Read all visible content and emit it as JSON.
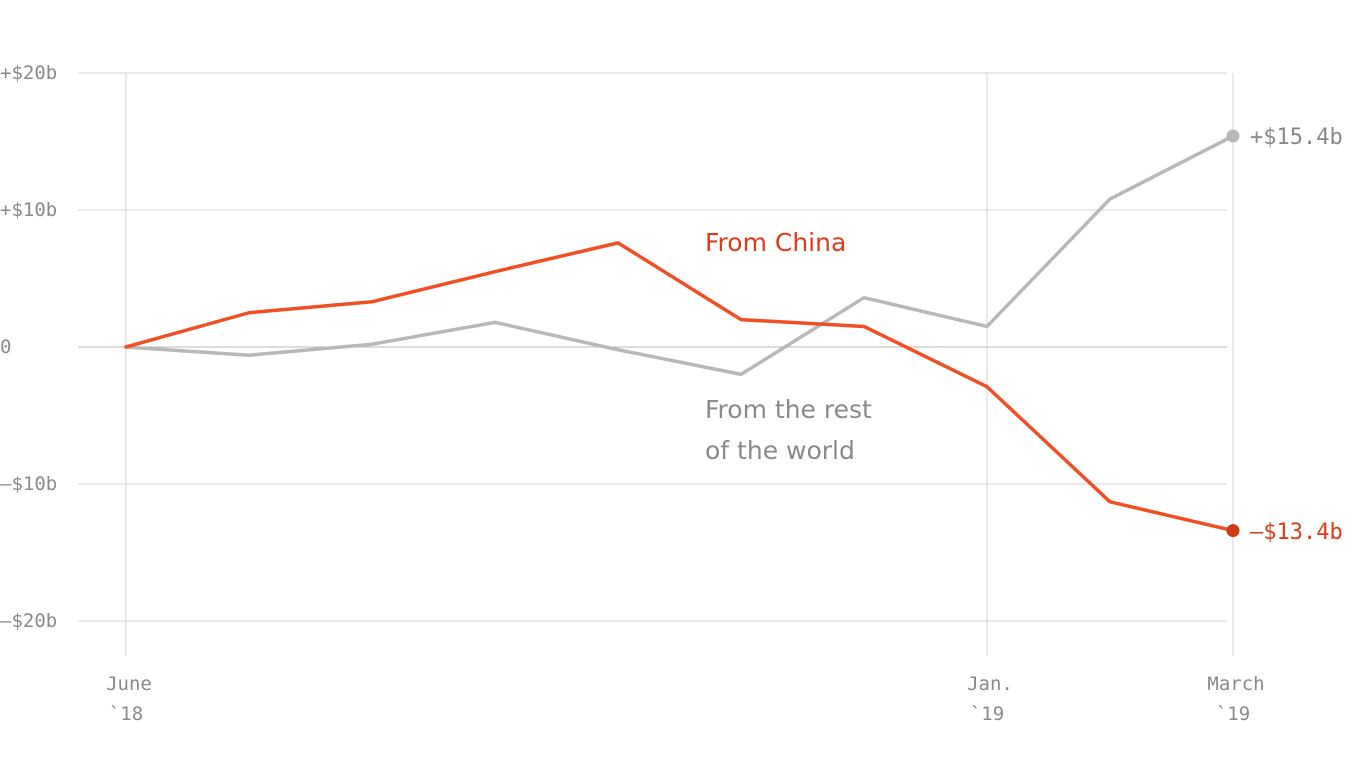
{
  "chart_data": {
    "type": "line",
    "x": [
      "June 2018",
      "July 2018",
      "Aug. 2018",
      "Sept. 2018",
      "Oct. 2018",
      "Nov. 2018",
      "Dec. 2018",
      "Jan. 2019",
      "Feb. 2019",
      "March 2019"
    ],
    "x_tick_labels": [
      {
        "index": 0,
        "line1": "June",
        "line2": "`18"
      },
      {
        "index": 7,
        "line1": "Jan.",
        "line2": "`19"
      },
      {
        "index": 9,
        "line1": "March",
        "line2": "`19"
      }
    ],
    "y_ticks": [
      {
        "value": 20,
        "label": "+$20b"
      },
      {
        "value": 10,
        "label": "+$10b"
      },
      {
        "value": 0,
        "label": "0"
      },
      {
        "value": -10,
        "label": "–$10b"
      },
      {
        "value": -20,
        "label": "–$20b"
      }
    ],
    "ylim": [
      -20,
      20
    ],
    "series": [
      {
        "name": "From China",
        "color": "#f04e23",
        "values": [
          0,
          2.5,
          3.3,
          5.5,
          7.6,
          2.0,
          1.5,
          -2.9,
          -11.3,
          -13.4
        ],
        "end_label": "–$13.4b",
        "end_dot_color": "#cc3a17"
      },
      {
        "name": "From the rest of the world",
        "name_lines": [
          "From the rest",
          "of the world"
        ],
        "color": "#b8b8b8",
        "values": [
          0,
          -0.6,
          0.2,
          1.8,
          -0.2,
          -2.0,
          3.6,
          1.5,
          10.8,
          15.4
        ],
        "end_label": "+$15.4b",
        "end_dot_color": "#b8b8b8"
      }
    ],
    "label_colors": {
      "china": "#dd3d18",
      "world": "#8a8a8a"
    },
    "grid": true,
    "vertical_gridlines_at": [
      0,
      7,
      9
    ]
  }
}
